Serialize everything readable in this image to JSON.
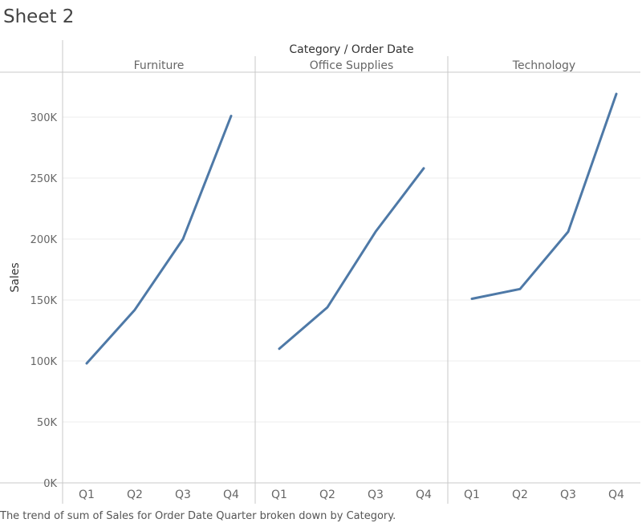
{
  "sheet": {
    "title": "Sheet 2"
  },
  "caption": "The trend of sum of Sales for Order Date Quarter broken down by Category.",
  "colors": {
    "line": "#4e79a7",
    "grid": "#ececec",
    "axis": "#c8c8c8",
    "text": "#666666"
  },
  "chart_data": {
    "type": "line",
    "header": "Category / Order Date",
    "ylabel": "Sales",
    "ylim": [
      0,
      330000
    ],
    "yticks": [
      0,
      50000,
      100000,
      150000,
      200000,
      250000,
      300000
    ],
    "ytick_labels": [
      "0K",
      "50K",
      "100K",
      "150K",
      "200K",
      "250K",
      "300K"
    ],
    "categories": [
      "Q1",
      "Q2",
      "Q3",
      "Q4"
    ],
    "grid": true,
    "series": [
      {
        "name": "Furniture",
        "values": [
          98000,
          142000,
          200000,
          301000
        ]
      },
      {
        "name": "Office Supplies",
        "values": [
          110000,
          144000,
          206000,
          258000
        ]
      },
      {
        "name": "Technology",
        "values": [
          151000,
          159000,
          206000,
          319000
        ]
      }
    ]
  }
}
